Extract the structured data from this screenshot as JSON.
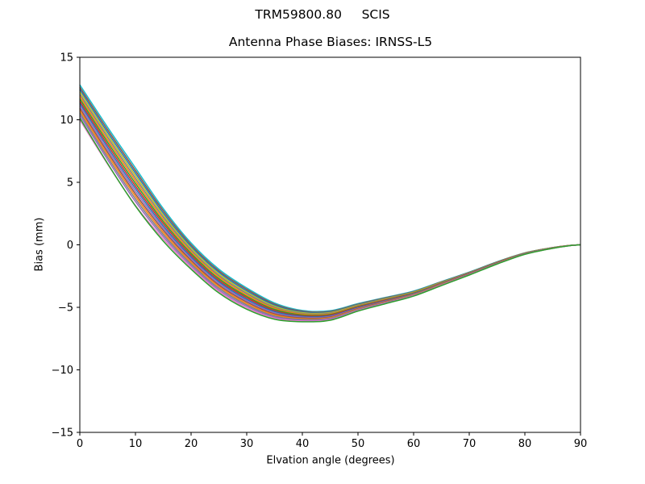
{
  "figure": {
    "background": "#ffffff",
    "text_color": "#000000",
    "spine_color": "#000000"
  },
  "chart_data": {
    "type": "line",
    "suptitle": "TRM59800.80     SCIS",
    "title": "Antenna Phase Biases: IRNSS-L5",
    "xlabel": "Elvation angle (degrees)",
    "ylabel": "Bias (mm)",
    "xlim": [
      0,
      90
    ],
    "ylim": [
      -15,
      15
    ],
    "xticks": [
      0,
      10,
      20,
      30,
      40,
      50,
      60,
      70,
      80,
      90
    ],
    "yticks": [
      -15,
      -10,
      -5,
      0,
      5,
      10,
      15
    ],
    "grid": false,
    "legend": false,
    "x": [
      0,
      5,
      10,
      15,
      20,
      25,
      30,
      35,
      40,
      45,
      50,
      55,
      60,
      65,
      70,
      75,
      80,
      85,
      88,
      90
    ],
    "series": [
      {
        "name": "line-01",
        "color": "#17becf",
        "values": [
          12.8,
          9.4,
          6.15,
          2.9,
          0.15,
          -1.95,
          -3.45,
          -4.65,
          -5.25,
          -5.27,
          -4.7,
          -4.2,
          -3.7,
          -2.94,
          -2.18,
          -1.36,
          -0.64,
          -0.22,
          -0.05,
          0.0
        ]
      },
      {
        "name": "line-02",
        "color": "#8c564b",
        "values": [
          12.61,
          9.2,
          5.94,
          2.73,
          0.01,
          -2.08,
          -3.56,
          -4.74,
          -5.31,
          -5.32,
          -4.74,
          -4.23,
          -3.73,
          -2.96,
          -2.2,
          -1.37,
          -0.65,
          -0.22,
          -0.05,
          0.0
        ]
      },
      {
        "name": "line-03",
        "color": "#1f77b4",
        "values": [
          12.43,
          9.0,
          5.74,
          2.55,
          -0.13,
          -2.2,
          -3.68,
          -4.82,
          -5.37,
          -5.37,
          -4.78,
          -4.27,
          -3.75,
          -2.98,
          -2.21,
          -1.38,
          -0.66,
          -0.23,
          -0.05,
          0.0
        ]
      },
      {
        "name": "line-04",
        "color": "#bcbd22",
        "values": [
          12.24,
          8.8,
          5.53,
          2.38,
          -0.27,
          -2.33,
          -3.79,
          -4.91,
          -5.43,
          -5.42,
          -4.82,
          -4.3,
          -3.78,
          -3.0,
          -2.23,
          -1.4,
          -0.66,
          -0.23,
          -0.05,
          0.0
        ]
      },
      {
        "name": "line-05",
        "color": "#7f7f7f",
        "values": [
          12.05,
          8.6,
          5.32,
          2.21,
          -0.41,
          -2.46,
          -3.9,
          -5.0,
          -5.49,
          -5.47,
          -4.86,
          -4.33,
          -3.81,
          -3.03,
          -2.24,
          -1.41,
          -0.67,
          -0.24,
          -0.05,
          0.0
        ]
      },
      {
        "name": "line-06",
        "color": "#ff7f0e",
        "values": [
          11.87,
          8.4,
          5.12,
          2.03,
          -0.55,
          -2.58,
          -4.02,
          -5.08,
          -5.55,
          -5.52,
          -4.9,
          -4.37,
          -3.83,
          -3.05,
          -2.26,
          -1.42,
          -0.68,
          -0.24,
          -0.06,
          0.0
        ]
      },
      {
        "name": "line-07",
        "color": "#2ca02c",
        "values": [
          11.68,
          8.2,
          4.91,
          1.86,
          -0.69,
          -2.71,
          -4.13,
          -5.17,
          -5.61,
          -5.57,
          -4.94,
          -4.4,
          -3.86,
          -3.07,
          -2.28,
          -1.43,
          -0.69,
          -0.24,
          -0.06,
          0.0
        ]
      },
      {
        "name": "line-08",
        "color": "#d62728",
        "values": [
          11.49,
          8.0,
          4.7,
          1.69,
          -0.83,
          -2.84,
          -4.24,
          -5.26,
          -5.67,
          -5.62,
          -4.98,
          -4.43,
          -3.89,
          -3.09,
          -2.29,
          -1.44,
          -0.7,
          -0.25,
          -0.06,
          0.0
        ]
      },
      {
        "name": "line-09",
        "color": "#1f77b4",
        "values": [
          11.31,
          7.8,
          4.5,
          1.51,
          -0.97,
          -2.96,
          -4.36,
          -5.34,
          -5.73,
          -5.68,
          -5.02,
          -4.47,
          -3.91,
          -3.11,
          -2.31,
          -1.46,
          -0.7,
          -0.25,
          -0.06,
          0.0
        ]
      },
      {
        "name": "line-10",
        "color": "#9467bd",
        "values": [
          11.12,
          7.6,
          4.29,
          1.34,
          -1.11,
          -3.09,
          -4.47,
          -5.43,
          -5.79,
          -5.73,
          -5.06,
          -4.5,
          -3.94,
          -3.13,
          -2.32,
          -1.47,
          -0.71,
          -0.26,
          -0.06,
          0.0
        ]
      },
      {
        "name": "line-11",
        "color": "#8c564b",
        "values": [
          10.93,
          7.4,
          4.08,
          1.17,
          -1.25,
          -3.22,
          -4.58,
          -5.52,
          -5.85,
          -5.78,
          -5.1,
          -4.53,
          -3.97,
          -3.15,
          -2.34,
          -1.48,
          -0.72,
          -0.26,
          -0.06,
          0.0
        ]
      },
      {
        "name": "line-12",
        "color": "#ff7f0e",
        "values": [
          10.75,
          7.2,
          3.88,
          0.99,
          -1.39,
          -3.34,
          -4.7,
          -5.6,
          -5.91,
          -5.83,
          -5.14,
          -4.57,
          -3.99,
          -3.17,
          -2.36,
          -1.49,
          -0.73,
          -0.26,
          -0.06,
          0.0
        ]
      },
      {
        "name": "line-13",
        "color": "#7f7f7f",
        "values": [
          10.56,
          7.0,
          3.67,
          0.82,
          -1.53,
          -3.47,
          -4.81,
          -5.69,
          -5.97,
          -5.88,
          -5.18,
          -4.6,
          -4.02,
          -3.2,
          -2.37,
          -1.5,
          -0.74,
          -0.27,
          -0.07,
          0.0
        ]
      },
      {
        "name": "line-14",
        "color": "#9467bd",
        "values": [
          10.37,
          6.8,
          3.46,
          0.65,
          -1.67,
          -3.6,
          -4.92,
          -5.78,
          -6.03,
          -5.93,
          -5.22,
          -4.63,
          -4.05,
          -3.22,
          -2.39,
          -1.52,
          -0.74,
          -0.27,
          -0.07,
          0.0
        ]
      },
      {
        "name": "line-15",
        "color": "#e377c2",
        "values": [
          10.0,
          6.45,
          3.15,
          0.47,
          -1.81,
          -3.72,
          -5.04,
          -5.86,
          -6.09,
          -5.98,
          -5.26,
          -4.67,
          -4.07,
          -3.24,
          -2.4,
          -1.53,
          -0.75,
          -0.28,
          -0.07,
          0.0
        ]
      },
      {
        "name": "line-16",
        "color": "#2ca02c",
        "values": [
          10.15,
          6.5,
          3.1,
          0.3,
          -1.95,
          -3.85,
          -5.15,
          -5.95,
          -6.15,
          -6.03,
          -5.3,
          -4.7,
          -4.1,
          -3.26,
          -2.42,
          -1.54,
          -0.76,
          -0.28,
          -0.07,
          0.0
        ]
      }
    ]
  }
}
